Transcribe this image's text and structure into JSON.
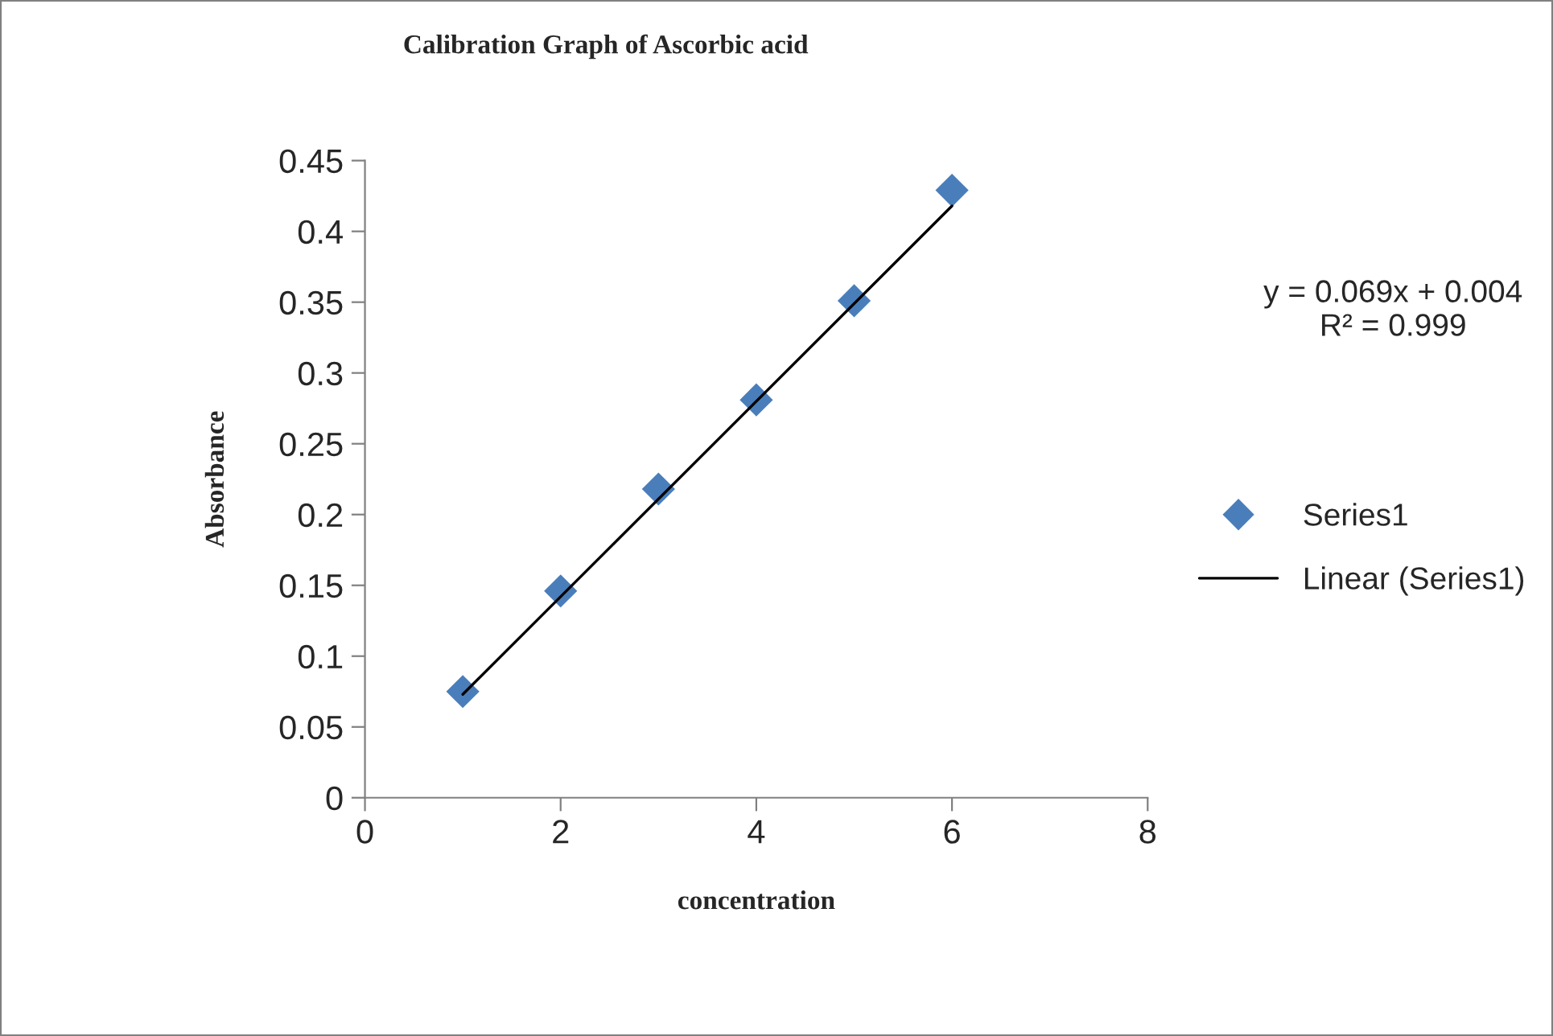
{
  "chart_data": {
    "type": "scatter",
    "title": "Calibration Graph of Ascorbic acid",
    "xlabel": "concentration",
    "ylabel": "Absorbance",
    "series": [
      {
        "name": "Series1",
        "color": "#4a7ebb",
        "marker": "diamond",
        "x": [
          1,
          2,
          3,
          4,
          5,
          6
        ],
        "values": [
          0.075,
          0.146,
          0.218,
          0.281,
          0.351,
          0.429
        ]
      },
      {
        "name": "Linear (Series1)",
        "type": "line",
        "color": "#000000",
        "marker": "none",
        "line_style": "solid",
        "x": [
          1,
          6
        ],
        "values": [
          0.073,
          0.418
        ]
      }
    ],
    "annotations": [
      "y = 0.069x + 0.004\nR² = 0.999"
    ],
    "xlim": [
      0,
      8
    ],
    "xticks": [
      0,
      2,
      4,
      6,
      8
    ],
    "ylim": [
      0,
      0.45
    ],
    "yticks": [
      0,
      0.05,
      0.1,
      0.15,
      0.2,
      0.25,
      0.3,
      0.35,
      0.4,
      0.45
    ],
    "grid": false,
    "legend": "right"
  }
}
